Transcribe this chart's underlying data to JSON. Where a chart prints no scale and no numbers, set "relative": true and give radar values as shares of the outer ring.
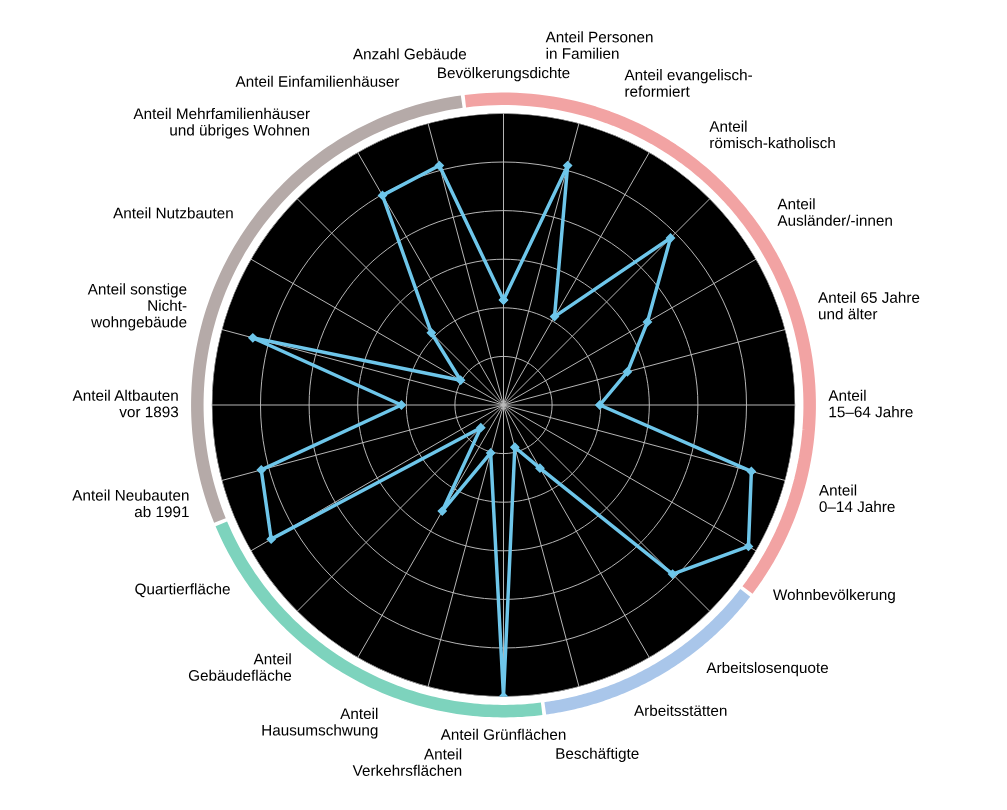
{
  "chart_data": {
    "type": "radar",
    "relative": true,
    "grid": true,
    "marker": "diamond",
    "line_style": "solid",
    "categories": [
      "Bevölkerungsdichte",
      "Anteil Personen\nin Familien",
      "Anteil evangelisch-\nreformiert",
      "Anteil\nrömisch-katholisch",
      "Anteil\nAusländer/-innen",
      "Anteil 65 Jahre\nund älter",
      "Anteil\n15–64 Jahre",
      "Anteil\n0–14 Jahre",
      "Wohnbevölkerung",
      "Arbeitslosenquote",
      "Arbeitsstätten",
      "Beschäftigte",
      "Anteil Grünflächen",
      "Anteil\nVerkehrsflächen",
      "Anteil\nHausumschwung",
      "Anteil\nGebäudefläche",
      "Quartierfläche",
      "Anteil Neubauten\nab 1991",
      "Anteil Altbauten\nvor 1893",
      "Anteil sonstige\nNicht-\nwohngebäude",
      "Anteil Nutzbauten",
      "Anteil Mehrfamilienhäuser\nund übriges Wohnen",
      "Anteil Einfamilienhäuser",
      "Anzahl Gebäude"
    ],
    "series": [
      {
        "color": "#6ec6ea",
        "values": [
          0.36,
          0.85,
          0.35,
          0.81,
          0.57,
          0.44,
          0.33,
          0.88,
          0.97,
          0.82,
          0.25,
          0.15,
          1.0,
          0.17,
          0.42,
          0.11,
          0.92,
          0.86,
          0.35,
          0.89,
          0.17,
          0.35,
          0.83,
          0.85
        ]
      }
    ]
  }
}
